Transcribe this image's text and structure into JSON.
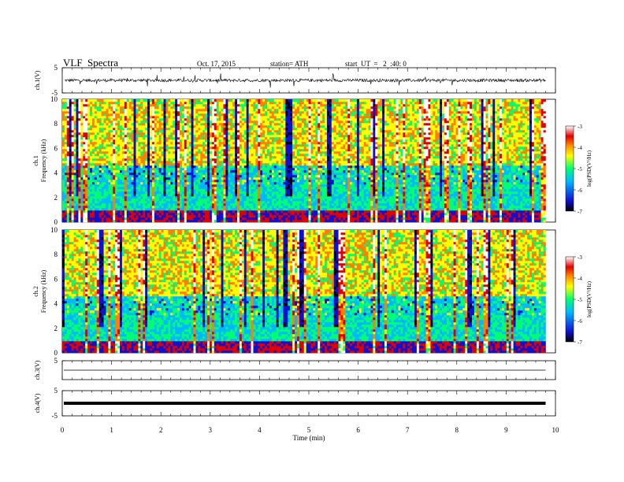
{
  "header": {
    "title": "VLF  Spectra",
    "date": "Oct. 17, 2015",
    "station": "station= ATH",
    "start": "start  UT  =   2  :40: 0"
  },
  "chart_data": [
    {
      "type": "line",
      "panel": "ch1-waveform",
      "ylabel": "ch.1(V)",
      "ylim": [
        -5,
        5
      ],
      "yticks": [
        "5",
        "-5"
      ],
      "xlim": [
        0,
        10
      ],
      "color": "#000000"
    },
    {
      "type": "heatmap",
      "panel": "ch1-spectrogram",
      "ylabel": "ch.1\nFrequency  (kHz)",
      "ylim": [
        0,
        10
      ],
      "yticks": [
        "0",
        "2",
        "4",
        "6",
        "8",
        "10"
      ],
      "xlim": [
        0,
        9.8
      ],
      "colorbar": {
        "label": "log(PSD(V²/Hz)",
        "range": [
          -7,
          -3
        ],
        "ticks": [
          "-3",
          "-4",
          "-5",
          "-6",
          "-7"
        ],
        "colors": [
          "#000000",
          "#1010d0",
          "#00b8ff",
          "#00ff70",
          "#ffff00",
          "#ff8000",
          "#e00000",
          "#ffffff"
        ]
      }
    },
    {
      "type": "heatmap",
      "panel": "ch2-spectrogram",
      "ylabel": "ch.2\nFrequency  (kHz)",
      "ylim": [
        0,
        10
      ],
      "yticks": [
        "0",
        "2",
        "4",
        "6",
        "8",
        "10"
      ],
      "xlim": [
        0,
        9.8
      ],
      "colorbar": {
        "label": "log(PSD(V²/Hz)",
        "range": [
          -7,
          -3
        ],
        "ticks": [
          "-3",
          "-4",
          "-5",
          "-6",
          "-7"
        ],
        "colors": [
          "#000000",
          "#1010d0",
          "#00b8ff",
          "#00ff70",
          "#ffff00",
          "#ff8000",
          "#e00000",
          "#ffffff"
        ]
      }
    },
    {
      "type": "line",
      "panel": "ch3-waveform",
      "ylabel": "ch.3(V)",
      "ylim": [
        -5,
        5
      ],
      "yticks": [
        "5"
      ],
      "xlim": [
        0,
        9.8
      ],
      "series": [
        {
          "x": [
            0,
            9.8
          ],
          "y": [
            0,
            0
          ]
        }
      ]
    },
    {
      "type": "line",
      "panel": "ch4-waveform",
      "ylabel": "ch.4(V)",
      "ylim": [
        -5,
        5
      ],
      "yticks": [
        "5",
        "-5"
      ],
      "xlim": [
        0,
        9.8
      ],
      "series": [
        {
          "x": [
            0,
            9.8
          ],
          "y": [
            0,
            0
          ]
        }
      ]
    }
  ],
  "xaxis": {
    "label": "Time  (min)",
    "ticks": [
      "0",
      "1",
      "2",
      "3",
      "4",
      "5",
      "6",
      "7",
      "8",
      "9",
      "10"
    ],
    "range": [
      0,
      10
    ]
  }
}
